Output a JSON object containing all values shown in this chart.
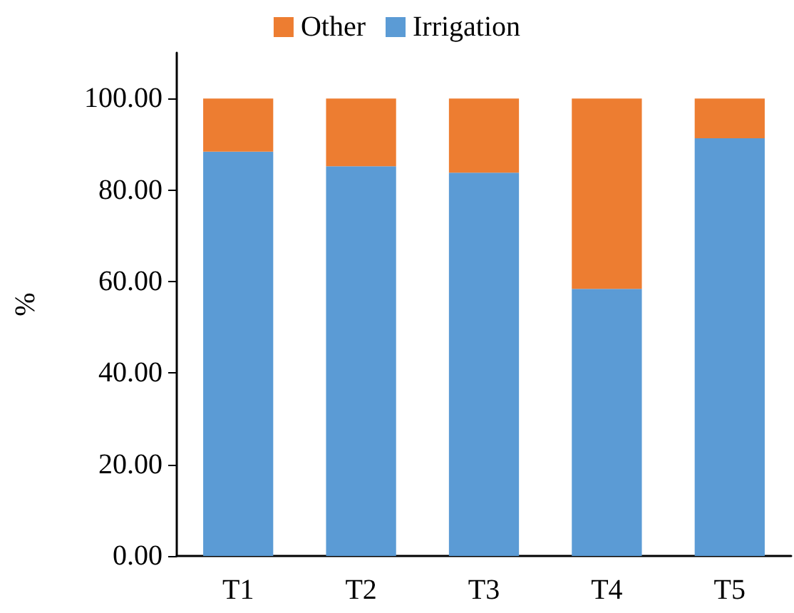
{
  "chart_data": {
    "type": "bar",
    "stacked": true,
    "ylabel": "%",
    "categories": [
      "T1",
      "T2",
      "T3",
      "T4",
      "T5"
    ],
    "series": [
      {
        "name": "Irrigation",
        "color": "#5b9bd5",
        "values": [
          88.4,
          85.2,
          83.8,
          58.4,
          91.3
        ]
      },
      {
        "name": "Other",
        "color": "#ed7d31",
        "values": [
          11.6,
          14.8,
          16.2,
          41.6,
          8.7
        ]
      }
    ],
    "ylim": [
      0,
      110
    ],
    "yticks": [
      {
        "value": 0,
        "label": "0.00"
      },
      {
        "value": 20,
        "label": "20.00"
      },
      {
        "value": 40,
        "label": "40.00"
      },
      {
        "value": 60,
        "label": "60.00"
      },
      {
        "value": 80,
        "label": "80.00"
      },
      {
        "value": 100,
        "label": "100.00"
      }
    ],
    "grid": false,
    "legend": "top"
  }
}
